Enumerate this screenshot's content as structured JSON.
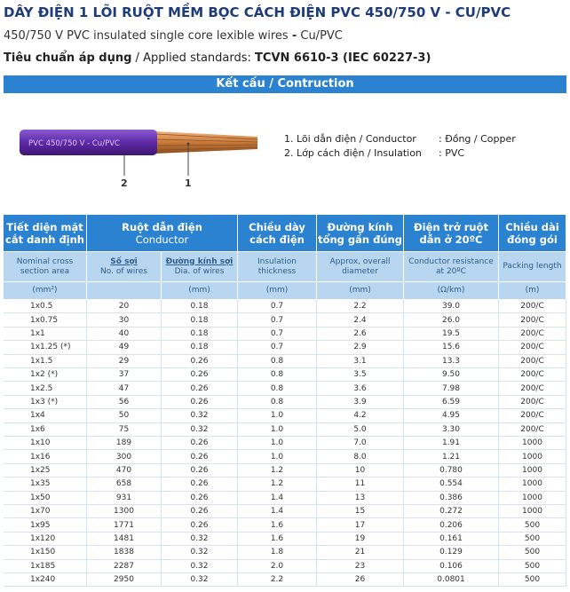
{
  "header": {
    "title": "DÂY ĐIỆN 1 LÕI RUỘT MỀM BỌC CÁCH ĐIỆN PVC 450/750 V - CU/PVC",
    "subtitle": [
      "450/750 V PVC insulated single core  lexible wires ",
      "-",
      " Cu/PVC"
    ],
    "standards": [
      "Tiêu chuẩn áp dụng",
      " / Applied standards: ",
      "TCVN 6610-3 (IEC 60227-3)"
    ]
  },
  "construction": {
    "band": "Kết cấu / Contruction",
    "cable_label": "PVC 450/750 V - Cu/PVC",
    "callouts": [
      "2",
      "1"
    ],
    "legend": [
      {
        "part": "1. Lõi dẫn điện / Conductor",
        "material": ": Đồng / Copper"
      },
      {
        "part": "2. Lớp cách điện / Insulation",
        "material": ": PVC"
      }
    ]
  },
  "table": {
    "head": [
      "Tiết diện mặt cắt danh định",
      "Ruột dẫn điện",
      "Chiều dày cách điện",
      "Đường kính tổng gần đúng",
      "Điện trở ruột dẫn ở 20ºC",
      "Chiều dài đóng gói"
    ],
    "head_en": "Conductor",
    "subhead": [
      [
        "Nominal cross section area"
      ],
      [
        "Số sợi",
        "No. of wires"
      ],
      [
        "Đường kính sợi",
        "Dia. of wires"
      ],
      [
        "Insulation thickness"
      ],
      [
        "Approx, overall diameter"
      ],
      [
        "Conductor resistance at 20ºC"
      ],
      [
        "Packing length"
      ]
    ],
    "units": [
      "(mm²)",
      "(mm)",
      "(mm)",
      "(mm)",
      "(Ω/km)",
      "(m)"
    ],
    "rows": [
      [
        "1x0.5",
        "20",
        "0.18",
        "0.7",
        "2.2",
        "39.0",
        "200/C"
      ],
      [
        "1x0.75",
        "30",
        "0.18",
        "0.7",
        "2.4",
        "26.0",
        "200/C"
      ],
      [
        "1x1",
        "40",
        "0.18",
        "0.7",
        "2.6",
        "19.5",
        "200/C"
      ],
      [
        "1x1.25 (*)",
        "49",
        "0.18",
        "0.7",
        "2.9",
        "15.6",
        "200/C"
      ],
      [
        "1x1.5",
        "29",
        "0.26",
        "0.8",
        "3.1",
        "13.3",
        "200/C"
      ],
      [
        "1x2 (*)",
        "37",
        "0.26",
        "0.8",
        "3.5",
        "9.50",
        "200/C"
      ],
      [
        "1x2.5",
        "47",
        "0.26",
        "0.8",
        "3.6",
        "7.98",
        "200/C"
      ],
      [
        "1x3 (*)",
        "56",
        "0.26",
        "0.8",
        "3.9",
        "6.59",
        "200/C"
      ],
      [
        "1x4",
        "50",
        "0.32",
        "1.0",
        "4.2",
        "4.95",
        "200/C"
      ],
      [
        "1x6",
        "75",
        "0.32",
        "1.0",
        "5.0",
        "3.30",
        "200/C"
      ],
      [
        "1x10",
        "189",
        "0.26",
        "1.0",
        "7.0",
        "1.91",
        "1000"
      ],
      [
        "1x16",
        "300",
        "0.26",
        "1.0",
        "8.0",
        "1.21",
        "1000"
      ],
      [
        "1x25",
        "470",
        "0.26",
        "1.2",
        "10",
        "0.780",
        "1000"
      ],
      [
        "1x35",
        "658",
        "0.26",
        "1.2",
        "11",
        "0.554",
        "1000"
      ],
      [
        "1x50",
        "931",
        "0.26",
        "1.4",
        "13",
        "0.386",
        "1000"
      ],
      [
        "1x70",
        "1300",
        "0.26",
        "1.4",
        "15",
        "0.272",
        "1000"
      ],
      [
        "1x95",
        "1771",
        "0.26",
        "1.6",
        "17",
        "0.206",
        "500"
      ],
      [
        "1x120",
        "1481",
        "0.32",
        "1.6",
        "19",
        "0.161",
        "500"
      ],
      [
        "1x150",
        "1838",
        "0.32",
        "1.8",
        "21",
        "0.129",
        "500"
      ],
      [
        "1x185",
        "2287",
        "0.32",
        "2.0",
        "23",
        "0.106",
        "500"
      ],
      [
        "1x240",
        "2950",
        "0.32",
        "2.2",
        "26",
        "0.0801",
        "500"
      ]
    ]
  }
}
